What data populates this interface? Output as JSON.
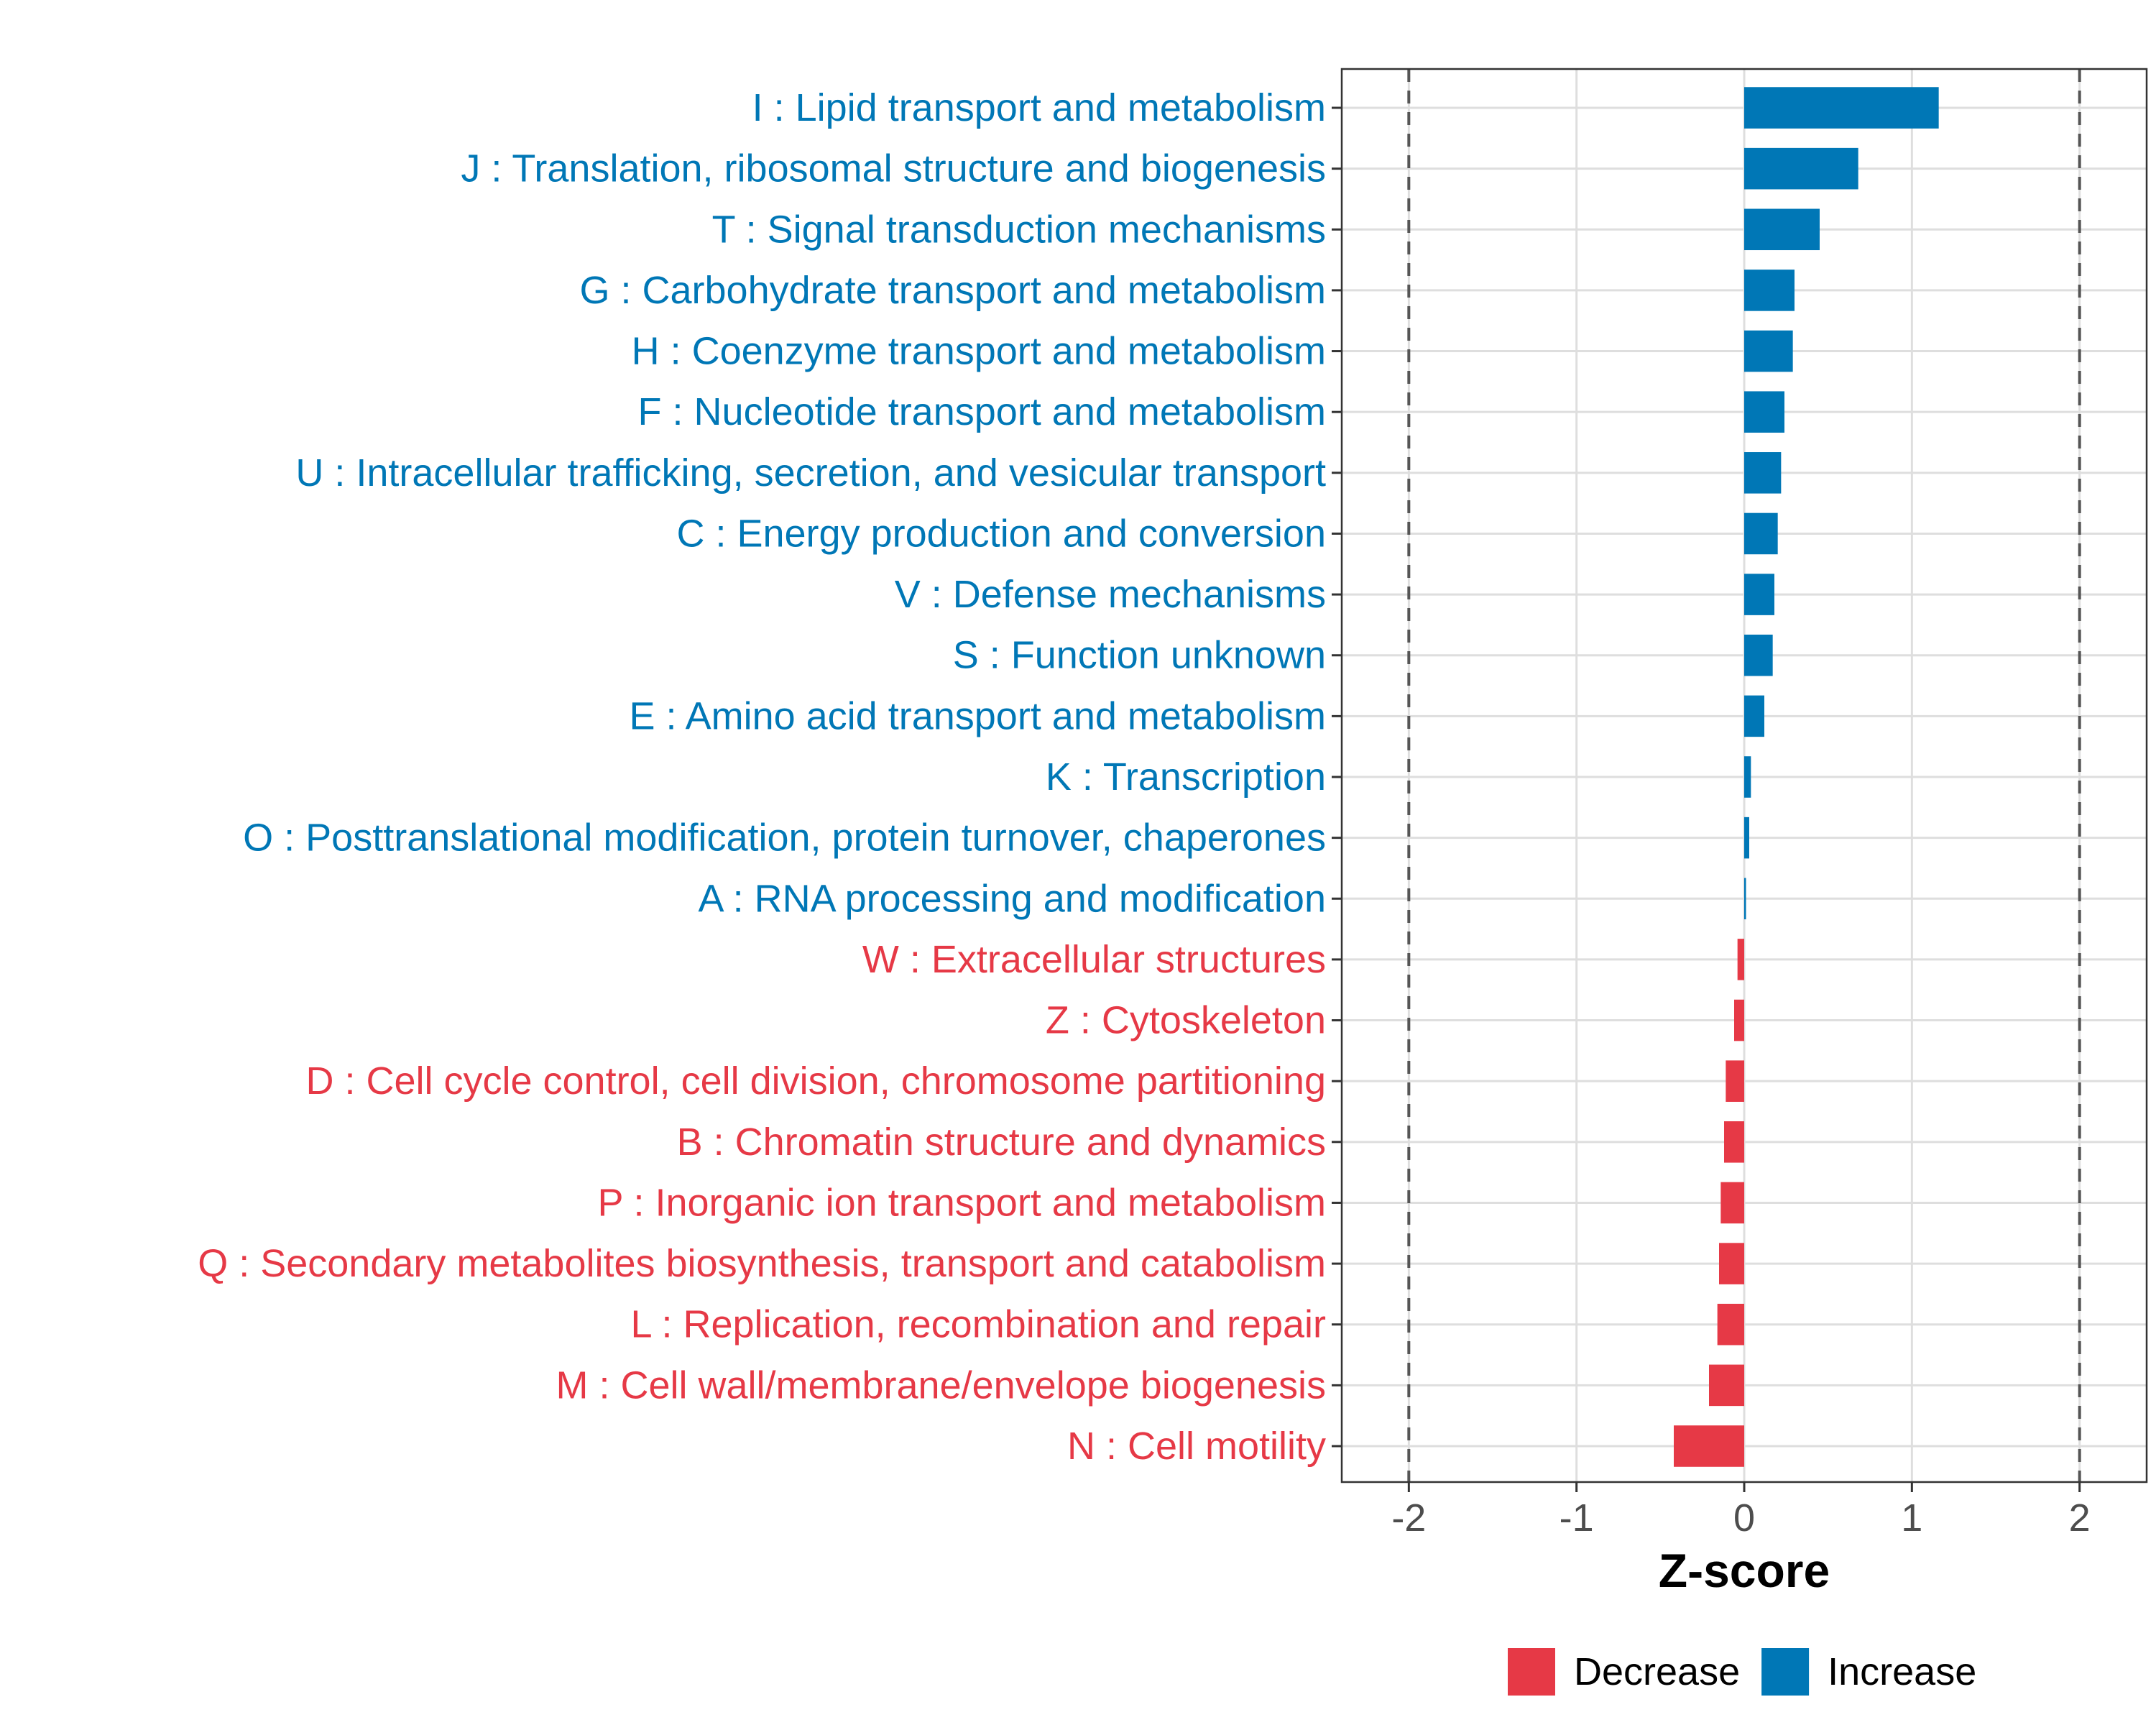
{
  "chart_data": {
    "type": "bar",
    "orientation": "horizontal",
    "xlabel": "Z-score",
    "ylabel": "",
    "xlim": [
      -2.4,
      2.4
    ],
    "x_ticks": [
      -2,
      -1,
      0,
      1,
      2
    ],
    "x_tick_labels": [
      "-2",
      "-1",
      "0",
      "1",
      "2"
    ],
    "reference_lines": [
      -2,
      2
    ],
    "grid": true,
    "legend": {
      "position": "bottom",
      "entries": [
        {
          "name": "Decrease",
          "color": "#E63946"
        },
        {
          "name": "Increase",
          "color": "#0077B6"
        }
      ]
    },
    "categories": [
      "I : Lipid transport and metabolism",
      "J : Translation, ribosomal structure and biogenesis",
      "T : Signal transduction mechanisms",
      "G : Carbohydrate transport and metabolism",
      "H : Coenzyme transport and metabolism",
      "F : Nucleotide transport and metabolism",
      "U : Intracellular trafficking, secretion, and vesicular transport",
      "C : Energy production and conversion",
      "V : Defense mechanisms",
      "S : Function unknown",
      "E : Amino acid transport and metabolism",
      "K : Transcription",
      "O : Posttranslational modification, protein turnover, chaperones",
      "A : RNA processing and modification",
      "W : Extracellular structures",
      "Z : Cytoskeleton",
      "D : Cell cycle control, cell division, chromosome partitioning",
      "B : Chromatin structure and dynamics",
      "P : Inorganic ion transport and metabolism",
      "Q : Secondary metabolites biosynthesis, transport and catabolism",
      "L : Replication, recombination and repair",
      "M : Cell wall/membrane/envelope biogenesis",
      "N : Cell motility"
    ],
    "values": [
      1.16,
      0.68,
      0.45,
      0.3,
      0.29,
      0.24,
      0.22,
      0.2,
      0.18,
      0.17,
      0.12,
      0.04,
      0.03,
      0.01,
      -0.04,
      -0.06,
      -0.11,
      -0.12,
      -0.14,
      -0.15,
      -0.16,
      -0.21,
      -0.42
    ],
    "groups": [
      "Increase",
      "Increase",
      "Increase",
      "Increase",
      "Increase",
      "Increase",
      "Increase",
      "Increase",
      "Increase",
      "Increase",
      "Increase",
      "Increase",
      "Increase",
      "Increase",
      "Decrease",
      "Decrease",
      "Decrease",
      "Decrease",
      "Decrease",
      "Decrease",
      "Decrease",
      "Decrease",
      "Decrease"
    ]
  }
}
